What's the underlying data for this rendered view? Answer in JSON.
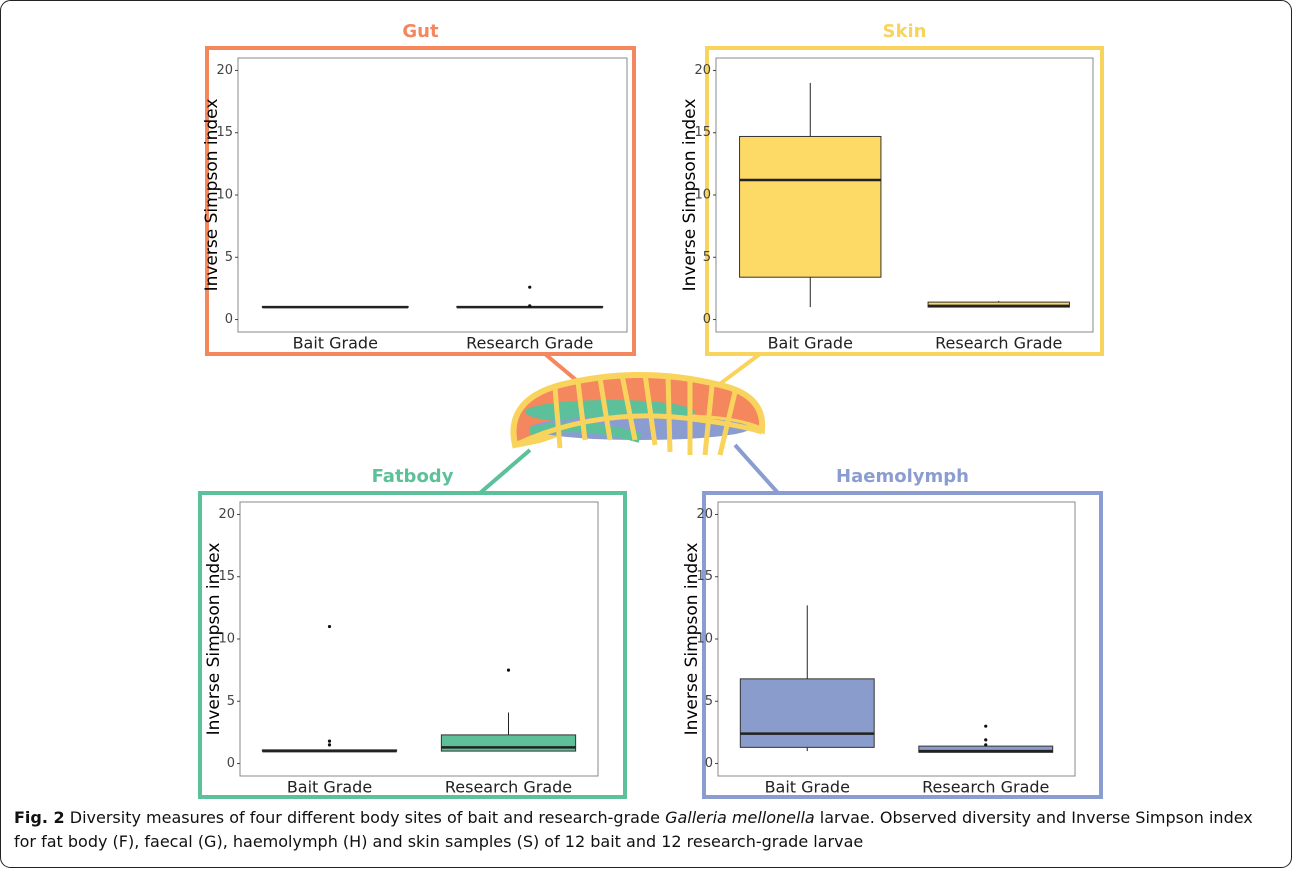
{
  "chart_data": [
    {
      "type": "box",
      "title": "Gut",
      "ylabel": "Inverse Simpson index",
      "categories": [
        "Bait Grade",
        "Research Grade"
      ],
      "color": "#f4875e",
      "box_color": "#e0714a",
      "ylim": [
        -1,
        21
      ],
      "yticks": [
        0,
        5,
        10,
        15,
        20
      ],
      "boxes": [
        {
          "min": 1,
          "q1": 1,
          "median": 1,
          "q3": 1.05,
          "max": 1.05,
          "outliers": []
        },
        {
          "min": 1,
          "q1": 1,
          "median": 1,
          "q3": 1.05,
          "max": 1.05,
          "outliers": [
            2.6,
            1.1
          ]
        }
      ]
    },
    {
      "type": "box",
      "title": "Skin",
      "ylabel": "Inverse Simpson index",
      "categories": [
        "Bait Grade",
        "Research Grade"
      ],
      "color": "#f9d45c",
      "box_color": "#fdd966",
      "ylim": [
        -1,
        21
      ],
      "yticks": [
        0,
        5,
        10,
        15,
        20
      ],
      "boxes": [
        {
          "min": 1,
          "q1": 3.4,
          "median": 11.2,
          "q3": 14.7,
          "max": 19,
          "outliers": []
        },
        {
          "min": 1,
          "q1": 1,
          "median": 1.1,
          "q3": 1.4,
          "max": 1.5,
          "outliers": []
        }
      ]
    },
    {
      "type": "box",
      "title": "Fatbody",
      "ylabel": "Inverse Simpson index",
      "categories": [
        "Bait Grade",
        "Research Grade"
      ],
      "color": "#5cc09a",
      "box_color": "#5fbf98",
      "ylim": [
        -1,
        21
      ],
      "yticks": [
        0,
        5,
        10,
        15,
        20
      ],
      "boxes": [
        {
          "min": 1,
          "q1": 1,
          "median": 1,
          "q3": 1.1,
          "max": 1.1,
          "outliers": [
            11,
            1.8,
            1.5
          ]
        },
        {
          "min": 1,
          "q1": 1,
          "median": 1.3,
          "q3": 2.3,
          "max": 4.1,
          "outliers": [
            7.5
          ]
        }
      ]
    },
    {
      "type": "box",
      "title": "Haemolymph",
      "ylabel": "Inverse Simpson index",
      "categories": [
        "Bait Grade",
        "Research Grade"
      ],
      "color": "#8b9dd0",
      "box_color": "#8a9ccc",
      "ylim": [
        -1,
        21
      ],
      "yticks": [
        0,
        5,
        10,
        15,
        20
      ],
      "boxes": [
        {
          "min": 1,
          "q1": 1.3,
          "median": 2.4,
          "q3": 6.8,
          "max": 12.7,
          "outliers": []
        },
        {
          "min": 0.9,
          "q1": 0.9,
          "median": 1,
          "q3": 1.4,
          "max": 1.4,
          "outliers": [
            3,
            1.9,
            1.5
          ]
        }
      ]
    }
  ],
  "caption": {
    "label": "Fig. 2",
    "text_before": "Diversity measures of four different body sites of bait and research-grade",
    "italic": "Galleria mellonella",
    "text_after": "larvae. Observed diversity and Inverse Simpson index for fat body (F), faecal (G), haemolymph (H) and skin samples (S) of 12 bait and 12 research-grade larvae"
  }
}
